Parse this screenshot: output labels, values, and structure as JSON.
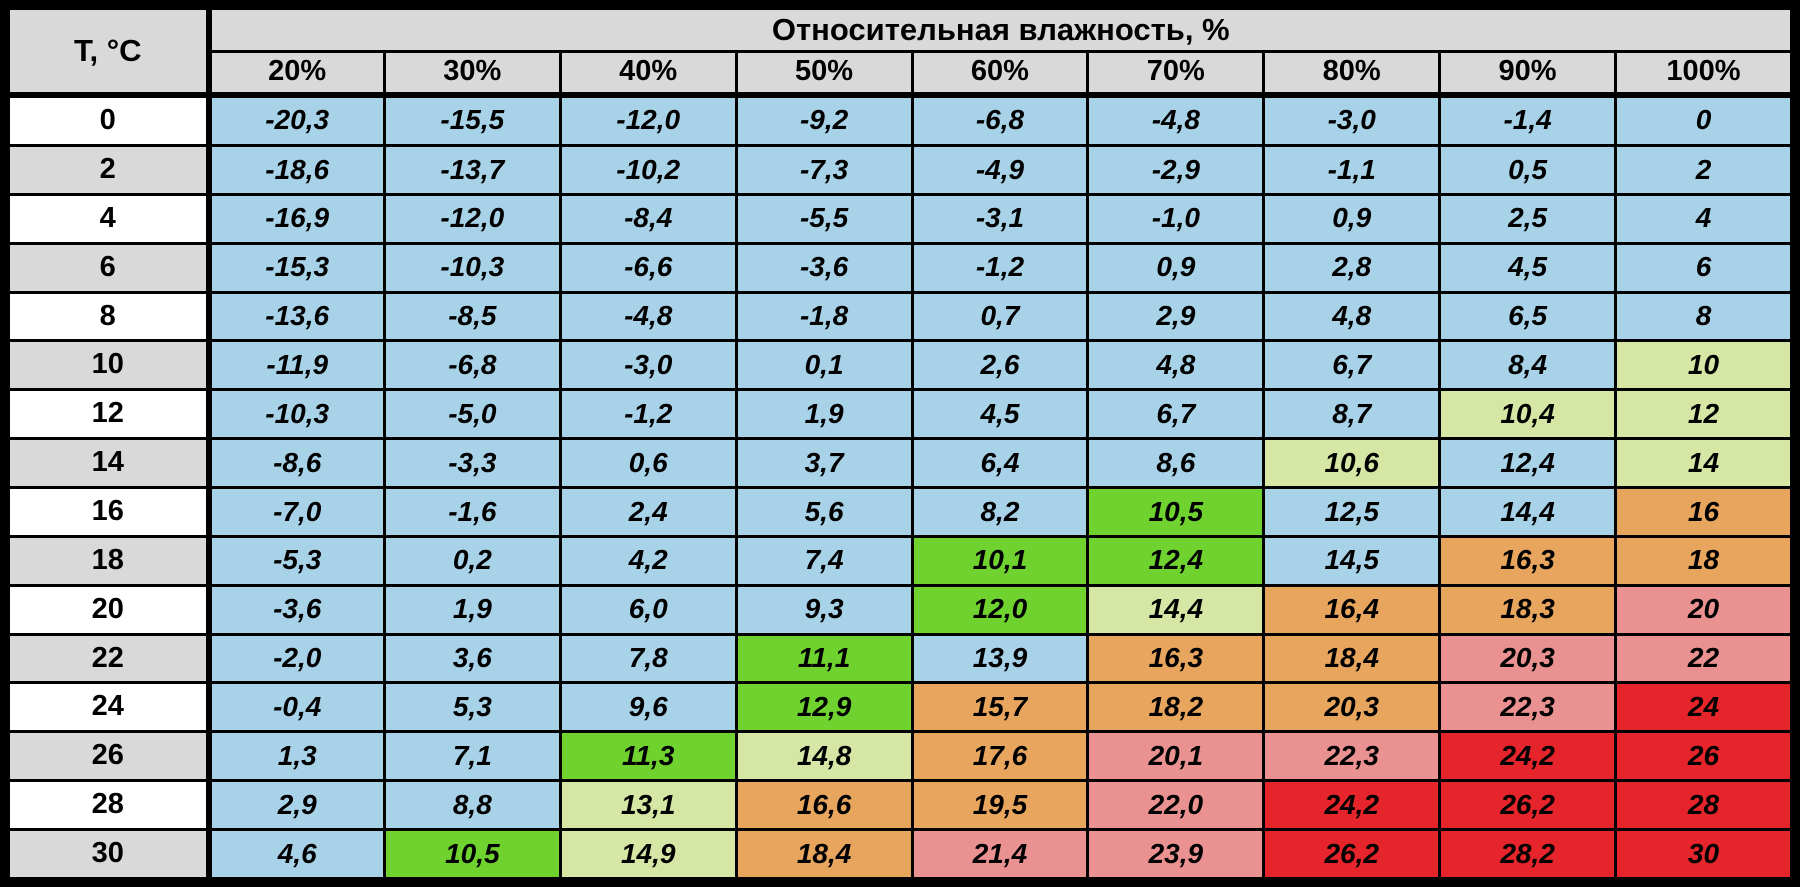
{
  "table": {
    "corner_label": "T, °C",
    "main_header": "Относительная влажность, %",
    "humidity_headers": [
      "20%",
      "30%",
      "40%",
      "50%",
      "60%",
      "70%",
      "80%",
      "90%",
      "100%"
    ],
    "rows": [
      {
        "temp": "0",
        "values": [
          "-20,3",
          "-15,5",
          "-12,0",
          "-9,2",
          "-6,8",
          "-4,8",
          "-3,0",
          "-1,4",
          "0"
        ],
        "colors": [
          "blue",
          "blue",
          "blue",
          "blue",
          "blue",
          "blue",
          "blue",
          "blue",
          "blue"
        ]
      },
      {
        "temp": "2",
        "values": [
          "-18,6",
          "-13,7",
          "-10,2",
          "-7,3",
          "-4,9",
          "-2,9",
          "-1,1",
          "0,5",
          "2"
        ],
        "colors": [
          "blue",
          "blue",
          "blue",
          "blue",
          "blue",
          "blue",
          "blue",
          "blue",
          "blue"
        ]
      },
      {
        "temp": "4",
        "values": [
          "-16,9",
          "-12,0",
          "-8,4",
          "-5,5",
          "-3,1",
          "-1,0",
          "0,9",
          "2,5",
          "4"
        ],
        "colors": [
          "blue",
          "blue",
          "blue",
          "blue",
          "blue",
          "blue",
          "blue",
          "blue",
          "blue"
        ]
      },
      {
        "temp": "6",
        "values": [
          "-15,3",
          "-10,3",
          "-6,6",
          "-3,6",
          "-1,2",
          "0,9",
          "2,8",
          "4,5",
          "6"
        ],
        "colors": [
          "blue",
          "blue",
          "blue",
          "blue",
          "blue",
          "blue",
          "blue",
          "blue",
          "blue"
        ]
      },
      {
        "temp": "8",
        "values": [
          "-13,6",
          "-8,5",
          "-4,8",
          "-1,8",
          "0,7",
          "2,9",
          "4,8",
          "6,5",
          "8"
        ],
        "colors": [
          "blue",
          "blue",
          "blue",
          "blue",
          "blue",
          "blue",
          "blue",
          "blue",
          "blue"
        ]
      },
      {
        "temp": "10",
        "values": [
          "-11,9",
          "-6,8",
          "-3,0",
          "0,1",
          "2,6",
          "4,8",
          "6,7",
          "8,4",
          "10"
        ],
        "colors": [
          "blue",
          "blue",
          "blue",
          "blue",
          "blue",
          "blue",
          "blue",
          "blue",
          "pale"
        ]
      },
      {
        "temp": "12",
        "values": [
          "-10,3",
          "-5,0",
          "-1,2",
          "1,9",
          "4,5",
          "6,7",
          "8,7",
          "10,4",
          "12"
        ],
        "colors": [
          "blue",
          "blue",
          "blue",
          "blue",
          "blue",
          "blue",
          "blue",
          "pale",
          "pale"
        ]
      },
      {
        "temp": "14",
        "values": [
          "-8,6",
          "-3,3",
          "0,6",
          "3,7",
          "6,4",
          "8,6",
          "10,6",
          "12,4",
          "14"
        ],
        "colors": [
          "blue",
          "blue",
          "blue",
          "blue",
          "blue",
          "blue",
          "pale",
          "blue",
          "pale"
        ]
      },
      {
        "temp": "16",
        "values": [
          "-7,0",
          "-1,6",
          "2,4",
          "5,6",
          "8,2",
          "10,5",
          "12,5",
          "14,4",
          "16"
        ],
        "colors": [
          "blue",
          "blue",
          "blue",
          "blue",
          "blue",
          "green",
          "blue",
          "blue",
          "orange"
        ]
      },
      {
        "temp": "18",
        "values": [
          "-5,3",
          "0,2",
          "4,2",
          "7,4",
          "10,1",
          "12,4",
          "14,5",
          "16,3",
          "18"
        ],
        "colors": [
          "blue",
          "blue",
          "blue",
          "blue",
          "green",
          "green",
          "blue",
          "orange",
          "orange"
        ]
      },
      {
        "temp": "20",
        "values": [
          "-3,6",
          "1,9",
          "6,0",
          "9,3",
          "12,0",
          "14,4",
          "16,4",
          "18,3",
          "20"
        ],
        "colors": [
          "blue",
          "blue",
          "blue",
          "blue",
          "green",
          "pale",
          "orange",
          "orange",
          "pink"
        ]
      },
      {
        "temp": "22",
        "values": [
          "-2,0",
          "3,6",
          "7,8",
          "11,1",
          "13,9",
          "16,3",
          "18,4",
          "20,3",
          "22"
        ],
        "colors": [
          "blue",
          "blue",
          "blue",
          "green",
          "blue",
          "orange",
          "orange",
          "pink",
          "pink"
        ]
      },
      {
        "temp": "24",
        "values": [
          "-0,4",
          "5,3",
          "9,6",
          "12,9",
          "15,7",
          "18,2",
          "20,3",
          "22,3",
          "24"
        ],
        "colors": [
          "blue",
          "blue",
          "blue",
          "green",
          "orange",
          "orange",
          "orange",
          "pink",
          "red"
        ]
      },
      {
        "temp": "26",
        "values": [
          "1,3",
          "7,1",
          "11,3",
          "14,8",
          "17,6",
          "20,1",
          "22,3",
          "24,2",
          "26"
        ],
        "colors": [
          "blue",
          "blue",
          "green",
          "pale",
          "orange",
          "pink",
          "pink",
          "red",
          "red"
        ]
      },
      {
        "temp": "28",
        "values": [
          "2,9",
          "8,8",
          "13,1",
          "16,6",
          "19,5",
          "22,0",
          "24,2",
          "26,2",
          "28"
        ],
        "colors": [
          "blue",
          "blue",
          "pale",
          "orange",
          "orange",
          "pink",
          "red",
          "red",
          "red"
        ]
      },
      {
        "temp": "30",
        "values": [
          "4,6",
          "10,5",
          "14,9",
          "18,4",
          "21,4",
          "23,9",
          "26,2",
          "28,2",
          "30"
        ],
        "colors": [
          "blue",
          "green",
          "pale",
          "orange",
          "pink",
          "pink",
          "red",
          "red",
          "red"
        ]
      }
    ]
  },
  "colors": {
    "blue": "#a8d2e8",
    "green": "#6fd22f",
    "pale": "#d6e6a5",
    "orange": "#e7a55e",
    "pink": "#ea9191",
    "red": "#e5252b",
    "header_gray": "#d9d9d9",
    "row_white": "#ffffff",
    "grid_black": "#000000"
  },
  "chart_data": {
    "type": "table",
    "title": "Относительная влажность, %",
    "row_axis_label": "T, °C",
    "columns_percent": [
      20,
      30,
      40,
      50,
      60,
      70,
      80,
      90,
      100
    ],
    "temperatures_c": [
      0,
      2,
      4,
      6,
      8,
      10,
      12,
      14,
      16,
      18,
      20,
      22,
      24,
      26,
      28,
      30
    ],
    "dew_points": [
      [
        -20.3,
        -15.5,
        -12.0,
        -9.2,
        -6.8,
        -4.8,
        -3.0,
        -1.4,
        0
      ],
      [
        -18.6,
        -13.7,
        -10.2,
        -7.3,
        -4.9,
        -2.9,
        -1.1,
        0.5,
        2
      ],
      [
        -16.9,
        -12.0,
        -8.4,
        -5.5,
        -3.1,
        -1.0,
        0.9,
        2.5,
        4
      ],
      [
        -15.3,
        -10.3,
        -6.6,
        -3.6,
        -1.2,
        0.9,
        2.8,
        4.5,
        6
      ],
      [
        -13.6,
        -8.5,
        -4.8,
        -1.8,
        0.7,
        2.9,
        4.8,
        6.5,
        8
      ],
      [
        -11.9,
        -6.8,
        -3.0,
        0.1,
        2.6,
        4.8,
        6.7,
        8.4,
        10
      ],
      [
        -10.3,
        -5.0,
        -1.2,
        1.9,
        4.5,
        6.7,
        8.7,
        10.4,
        12
      ],
      [
        -8.6,
        -3.3,
        0.6,
        3.7,
        6.4,
        8.6,
        10.6,
        12.4,
        14
      ],
      [
        -7.0,
        -1.6,
        2.4,
        5.6,
        8.2,
        10.5,
        12.5,
        14.4,
        16
      ],
      [
        -5.3,
        0.2,
        4.2,
        7.4,
        10.1,
        12.4,
        14.5,
        16.3,
        18
      ],
      [
        -3.6,
        1.9,
        6.0,
        9.3,
        12.0,
        14.4,
        16.4,
        18.3,
        20
      ],
      [
        -2.0,
        3.6,
        7.8,
        11.1,
        13.9,
        16.3,
        18.4,
        20.3,
        22
      ],
      [
        -0.4,
        5.3,
        9.6,
        12.9,
        15.7,
        18.2,
        20.3,
        22.3,
        24
      ],
      [
        1.3,
        7.1,
        11.3,
        14.8,
        17.6,
        20.1,
        22.3,
        24.2,
        26
      ],
      [
        2.9,
        8.8,
        13.1,
        16.6,
        19.5,
        22.0,
        24.2,
        26.2,
        28
      ],
      [
        4.6,
        10.5,
        14.9,
        18.4,
        21.4,
        23.9,
        26.2,
        28.2,
        30
      ]
    ]
  }
}
